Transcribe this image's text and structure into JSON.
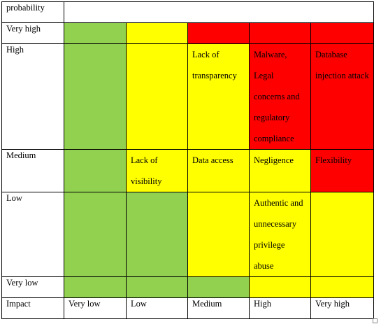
{
  "colors": {
    "green": "#92d050",
    "yellow": "#ffff00",
    "red": "#ff0000",
    "white": "#ffffff"
  },
  "header_label": "probability",
  "rows": [
    {
      "label": "Very high",
      "cells": [
        {
          "color": "green",
          "text": ""
        },
        {
          "color": "yellow",
          "text": ""
        },
        {
          "color": "red",
          "text": ""
        },
        {
          "color": "red",
          "text": ""
        },
        {
          "color": "red",
          "text": ""
        }
      ]
    },
    {
      "label": "High",
      "cells": [
        {
          "color": "green",
          "text": ""
        },
        {
          "color": "yellow",
          "text": ""
        },
        {
          "color": "yellow",
          "text": "Lack of transparency"
        },
        {
          "color": "red",
          "text": "Malware, Legal concerns and regulatory compliance"
        },
        {
          "color": "red",
          "text": "Database injection attack"
        }
      ]
    },
    {
      "label": "Medium",
      "cells": [
        {
          "color": "green",
          "text": ""
        },
        {
          "color": "yellow",
          "text": "Lack of visibility"
        },
        {
          "color": "yellow",
          "text": "Data access"
        },
        {
          "color": "yellow",
          "text": "Negligence"
        },
        {
          "color": "red",
          "text": "Flexibility"
        }
      ]
    },
    {
      "label": "Low",
      "cells": [
        {
          "color": "green",
          "text": ""
        },
        {
          "color": "green",
          "text": ""
        },
        {
          "color": "yellow",
          "text": ""
        },
        {
          "color": "yellow",
          "text": "Authentic and unnecessary privilege abuse"
        },
        {
          "color": "yellow",
          "text": ""
        }
      ]
    },
    {
      "label": "Very low",
      "cells": [
        {
          "color": "green",
          "text": ""
        },
        {
          "color": "green",
          "text": ""
        },
        {
          "color": "green",
          "text": ""
        },
        {
          "color": "yellow",
          "text": ""
        },
        {
          "color": "yellow",
          "text": ""
        }
      ]
    }
  ],
  "footer": {
    "label": "Impact",
    "columns": [
      "Very low",
      "Low",
      "Medium",
      "High",
      "Very high"
    ]
  }
}
